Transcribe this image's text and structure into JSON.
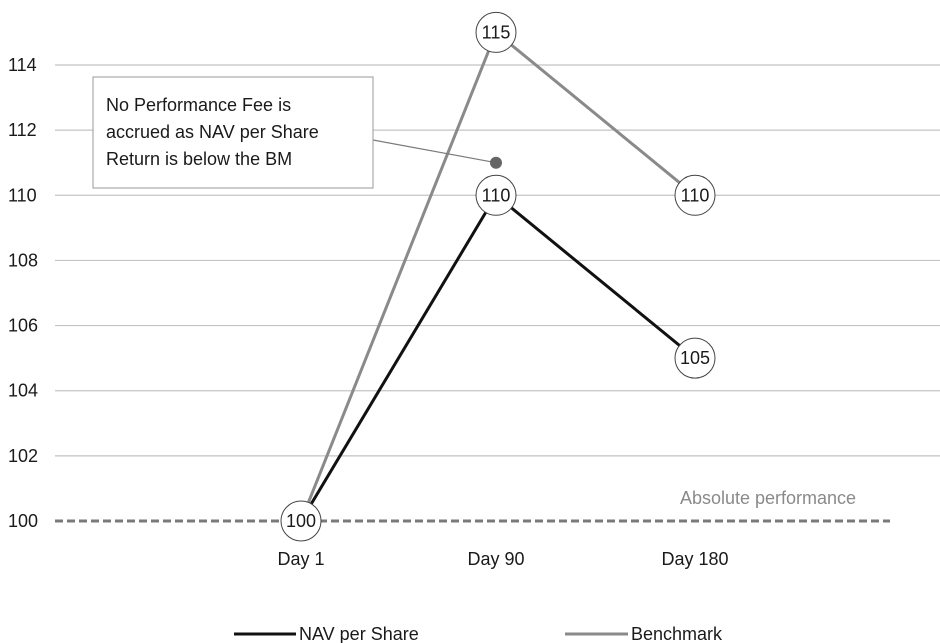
{
  "chart_data": {
    "type": "line",
    "categories": [
      "Day 1",
      "Day 90",
      "Day 180"
    ],
    "series": [
      {
        "name": "NAV per Share",
        "values": [
          100,
          110,
          105
        ],
        "color": "#111111"
      },
      {
        "name": "Benchmark",
        "values": [
          100,
          115,
          110
        ],
        "color": "#8a8a8a"
      }
    ],
    "data_labels": {
      "nav": [
        "100",
        "110",
        "105"
      ],
      "benchmark": [
        "",
        "115",
        "110"
      ]
    },
    "y_ticks": [
      "100",
      "102",
      "104",
      "106",
      "108",
      "110",
      "112",
      "114"
    ],
    "ylim": [
      100,
      115
    ],
    "reference_line": {
      "label": "Absolute performance",
      "value": 100,
      "color": "#7a7a7a"
    },
    "annotation": {
      "lines": [
        "No Performance Fee is",
        "accrued as NAV per Share",
        "Return is below the BM"
      ],
      "target_category": "Day 90",
      "target_value": 111
    },
    "legend": {
      "position": "bottom"
    },
    "grid": true
  }
}
